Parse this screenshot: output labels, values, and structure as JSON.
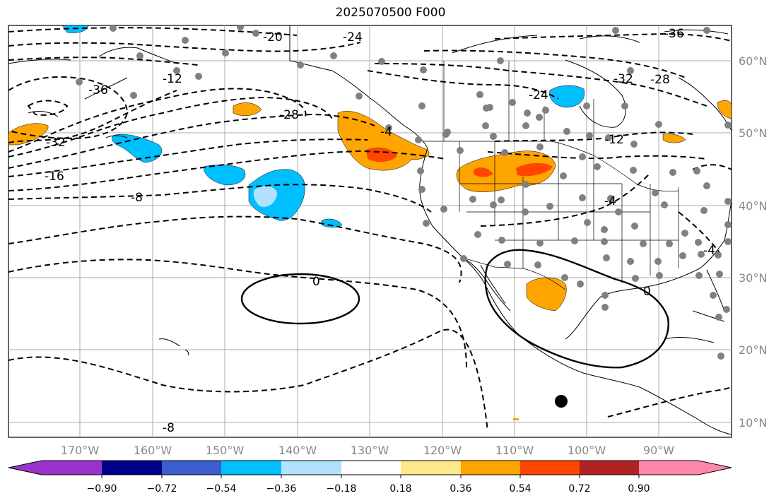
{
  "title": "2025070500 F000",
  "map": {
    "lon_ticks": [
      "170°W",
      "160°W",
      "150°W",
      "140°W",
      "130°W",
      "120°W",
      "110°W",
      "100°W",
      "90°W"
    ],
    "lat_ticks": [
      "60°N",
      "50°N",
      "40°N",
      "30°N",
      "20°N",
      "10°N"
    ],
    "contour_labels": [
      "-36",
      "-32",
      "-28",
      "-24",
      "-20",
      "-16",
      "-12",
      "-8",
      "-4",
      "0",
      "-24",
      "-32",
      "-28",
      "-36",
      "-12",
      "-4",
      "0",
      "-8"
    ],
    "feature_label": "-4"
  },
  "colorbar": {
    "ticks": [
      "−0.90",
      "−0.72",
      "−0.54",
      "−0.36",
      "−0.18",
      "0.18",
      "0.36",
      "0.54",
      "0.72",
      "0.90"
    ],
    "colors": [
      "#9a32cd",
      "#00008b",
      "#3a5fcd",
      "#00bfff",
      "#b0e2ff",
      "#ffffff",
      "#ffe88a",
      "#ffa500",
      "#ff4500",
      "#b22222",
      "#ff88aa",
      "#ff88aa"
    ]
  }
}
